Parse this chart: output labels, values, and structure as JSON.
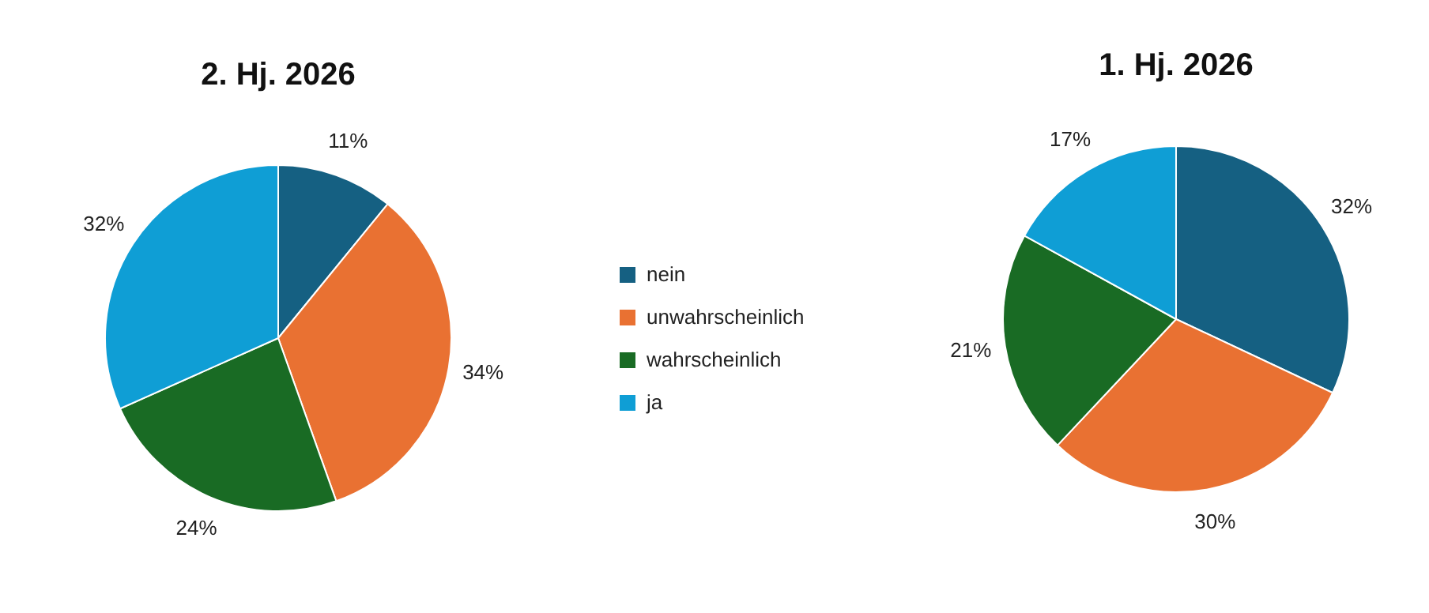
{
  "chart_data": [
    {
      "type": "pie",
      "title": "2. Hj. 2026",
      "categories": [
        "nein",
        "unwahrscheinlich",
        "wahrscheinlich",
        "ja"
      ],
      "values": [
        11,
        34,
        24,
        32
      ],
      "value_labels": [
        "11%",
        "34%",
        "24%",
        "32%"
      ],
      "colors": [
        "#156082",
        "#e97132",
        "#196b24",
        "#0f9ed5"
      ],
      "legend": "right"
    },
    {
      "type": "pie",
      "title": "1. Hj. 2026",
      "categories": [
        null,
        null,
        null,
        null
      ],
      "values": [
        32,
        30,
        21,
        17
      ],
      "value_labels": [
        "32%",
        "30%",
        "21%",
        "17%"
      ],
      "colors": [
        "#156082",
        "#e97132",
        "#196b24",
        "#0f9ed5"
      ],
      "legend": false
    }
  ]
}
